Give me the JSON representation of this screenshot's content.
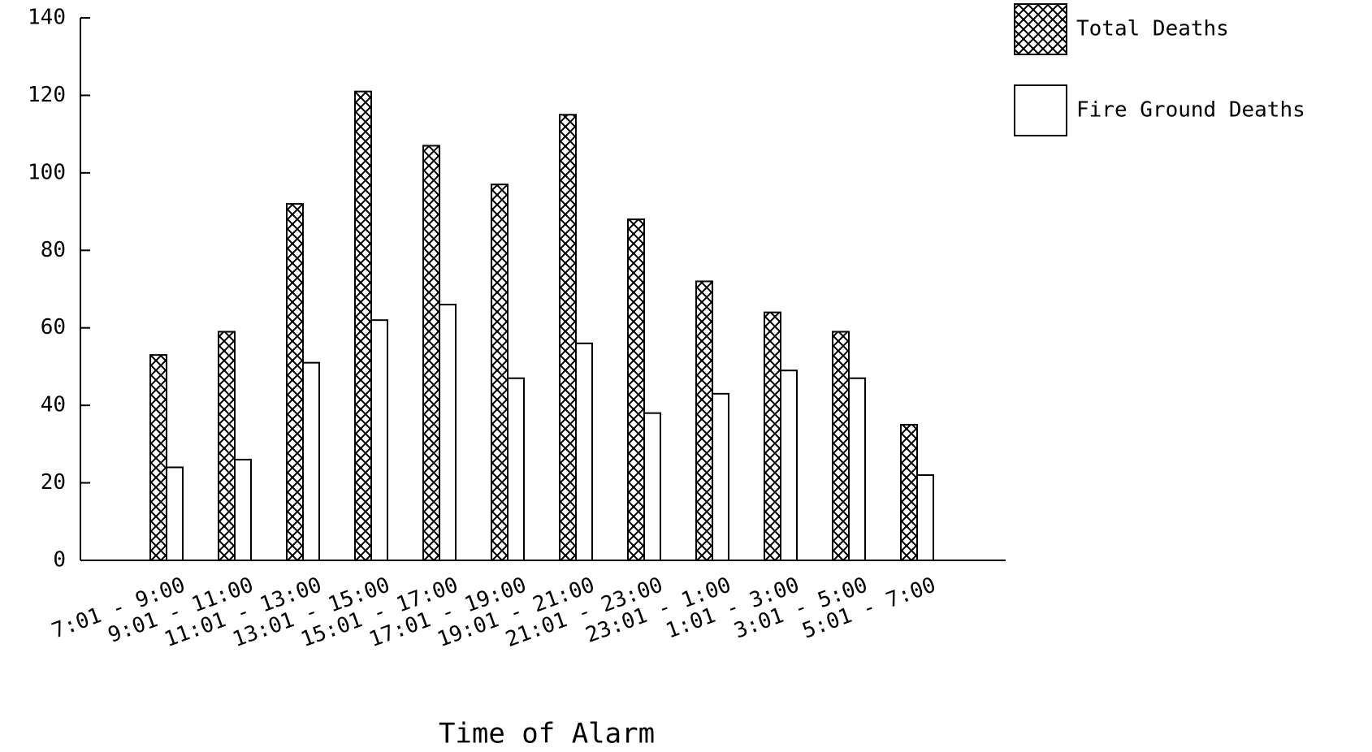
{
  "chart_data": {
    "type": "bar",
    "xlabel": "Time of Alarm",
    "categories": [
      "7:01 - 9:00",
      "9:01 - 11:00",
      "11:01 - 13:00",
      "13:01 - 15:00",
      "15:01 - 17:00",
      "17:01 - 19:00",
      "19:01 - 21:00",
      "21:01 - 23:00",
      "23:01 - 1:00",
      "1:01 - 3:00",
      "3:01 - 5:00",
      "5:01 - 7:00"
    ],
    "series": [
      {
        "name": "Total Deaths",
        "color": "#000000",
        "pattern": "crosshatch",
        "values": [
          53,
          59,
          92,
          121,
          107,
          97,
          115,
          88,
          72,
          64,
          59,
          35
        ]
      },
      {
        "name": "Fire Ground Deaths",
        "color": "#000000",
        "pattern": "none",
        "values": [
          24,
          26,
          51,
          62,
          66,
          47,
          56,
          38,
          43,
          49,
          47,
          22
        ]
      }
    ],
    "ylim": [
      0,
      140
    ],
    "yticks": [
      0,
      20,
      40,
      60,
      80,
      100,
      120,
      140
    ],
    "grid": false,
    "legend": "top-right"
  }
}
